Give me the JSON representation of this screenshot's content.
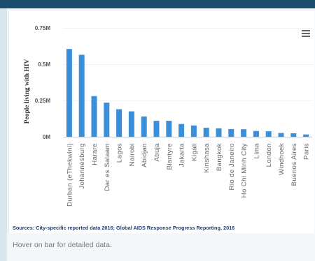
{
  "icons": {
    "menu": "hamburger-menu-icon"
  },
  "colors": {
    "bar": "#3b8fd9",
    "header": "#1b4d6e",
    "source_text": "#1f3d6b"
  },
  "source_note": "Sources: City-specific reported data 2016; Global AIDS Response Progress Reporting, 2016",
  "hint": "Hover on bar for detailed data.",
  "chart_data": {
    "type": "bar",
    "categories": [
      "Durban (eThekwini)",
      "Johannesburg",
      "Harare",
      "Dar es Salaam",
      "Lagos",
      "Nairobi",
      "Abidjan",
      "Abuja",
      "Blantyre",
      "Jakarta",
      "Kigali",
      "Kinshasa",
      "Bangkok",
      "Rio de Janeiro",
      "Ho Chi Minh City",
      "Lima",
      "London",
      "Windhoek",
      "Buenos Aires",
      "Paris"
    ],
    "values": [
      605000,
      565000,
      280000,
      235000,
      190000,
      175000,
      140000,
      110000,
      110000,
      88000,
      78000,
      62000,
      58000,
      53000,
      52000,
      40000,
      38000,
      26000,
      24000,
      16000
    ],
    "ylabel": "People living with HIV",
    "xlabel": "",
    "ylim": [
      0,
      750000
    ],
    "yticks": [
      0,
      250000,
      500000,
      750000
    ],
    "ytick_labels": [
      "0M",
      "0.25M",
      "0.5M",
      "0.75M"
    ],
    "grid": true,
    "legend": "none"
  }
}
